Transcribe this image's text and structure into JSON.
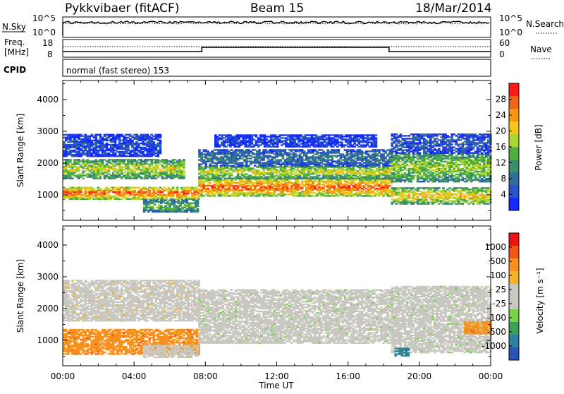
{
  "header": {
    "station": "Pykkvibaer (fitACF)",
    "beam": "Beam 15",
    "date": "18/Mar/2014"
  },
  "strip_labels": {
    "nsky": "N.Sky",
    "nsearch": "N.Search",
    "freq_line1": "Freq.",
    "freq_line2": "[MHz]",
    "nave": "Nave",
    "cpid": "CPID",
    "cpid_text": "normal (fast stereo) 153"
  },
  "noise_ticks": [
    "10^5",
    "10^0"
  ],
  "freq_ticks_left": [
    "18",
    "8"
  ],
  "freq_ticks_right": [
    "60",
    "0"
  ],
  "colors": {
    "power": [
      "#1428ff",
      "#2a52c8",
      "#2f6f9a",
      "#3b8f68",
      "#4fb040",
      "#a8d830",
      "#f2c81a",
      "#f59a10",
      "#f06414",
      "#ff1a1a"
    ],
    "velocity": [
      "#e81414",
      "#f2541a",
      "#f7901e",
      "#f3b32a",
      "#c8c8c0",
      "#c8c8c0",
      "#7ad24a",
      "#3f9f56",
      "#2f7fa0",
      "#2a55b4"
    ]
  },
  "chart_data": [
    {
      "type": "heatmap",
      "panel": "power",
      "ylabel": "Slant Range [km]",
      "yticks": [
        "1000",
        "2000",
        "3000",
        "4000"
      ],
      "ylim": [
        200,
        4600
      ],
      "xlim_hours": [
        0,
        24
      ],
      "colorbar": {
        "label": "Power [dB]",
        "ticks": [
          "4",
          "8",
          "12",
          "16",
          "20",
          "24",
          "28"
        ],
        "range": [
          0,
          32
        ]
      },
      "echo_bands": [
        {
          "t0": 0.0,
          "t1": 7.6,
          "r0": 850,
          "r1": 1250,
          "level": 0.88
        },
        {
          "t0": 0.0,
          "t1": 6.8,
          "r0": 1500,
          "r1": 2100,
          "level": 0.6
        },
        {
          "t0": 0.0,
          "t1": 5.5,
          "r0": 2200,
          "r1": 2900,
          "level": 0.15
        },
        {
          "t0": 4.5,
          "t1": 7.6,
          "r0": 450,
          "r1": 850,
          "level": 0.45
        },
        {
          "t0": 7.6,
          "t1": 18.4,
          "r0": 950,
          "r1": 1500,
          "level": 0.88
        },
        {
          "t0": 7.6,
          "t1": 18.4,
          "r0": 1500,
          "r1": 1900,
          "level": 0.62
        },
        {
          "t0": 7.6,
          "t1": 18.4,
          "r0": 1900,
          "r1": 2400,
          "level": 0.28
        },
        {
          "t0": 8.5,
          "t1": 17.5,
          "r0": 2500,
          "r1": 2900,
          "level": 0.12
        },
        {
          "t0": 18.4,
          "t1": 24.0,
          "r0": 700,
          "r1": 1200,
          "level": 0.7
        },
        {
          "t0": 18.4,
          "t1": 24.0,
          "r0": 1400,
          "r1": 2300,
          "level": 0.55
        },
        {
          "t0": 18.4,
          "t1": 24.0,
          "r0": 2300,
          "r1": 2900,
          "level": 0.18
        }
      ]
    },
    {
      "type": "heatmap",
      "panel": "velocity",
      "ylabel": "Slant Range [km]",
      "yticks": [
        "1000",
        "2000",
        "3000",
        "4000"
      ],
      "ylim": [
        200,
        4600
      ],
      "xlim_hours": [
        0,
        24
      ],
      "xlabel": "Time UT",
      "xticks": [
        "00:00",
        "04:00",
        "08:00",
        "12:00",
        "16:00",
        "20:00",
        "00:00"
      ],
      "colorbar": {
        "label": "Velocity [m s⁻¹]",
        "ticks": [
          "1000",
          "500",
          "100",
          "25",
          "-25",
          "-100",
          "-500",
          "-1000"
        ],
        "range": [
          -1000,
          1000
        ]
      },
      "echo_bands": [
        {
          "t0": 0.0,
          "t1": 7.6,
          "r0": 550,
          "r1": 1350,
          "class": 2
        },
        {
          "t0": 0.0,
          "t1": 7.6,
          "r0": 1600,
          "r1": 2900,
          "class": 4
        },
        {
          "t0": 4.5,
          "t1": 7.6,
          "r0": 450,
          "r1": 850,
          "class": 4
        },
        {
          "t0": 7.6,
          "t1": 18.4,
          "r0": 900,
          "r1": 2600,
          "class": 5
        },
        {
          "t0": 18.4,
          "t1": 24.0,
          "r0": 600,
          "r1": 2700,
          "class": 5
        },
        {
          "t0": 18.6,
          "t1": 19.4,
          "r0": 500,
          "r1": 750,
          "class": 8
        },
        {
          "t0": 22.5,
          "t1": 24.0,
          "r0": 1200,
          "r1": 1600,
          "class": 2
        }
      ]
    }
  ]
}
